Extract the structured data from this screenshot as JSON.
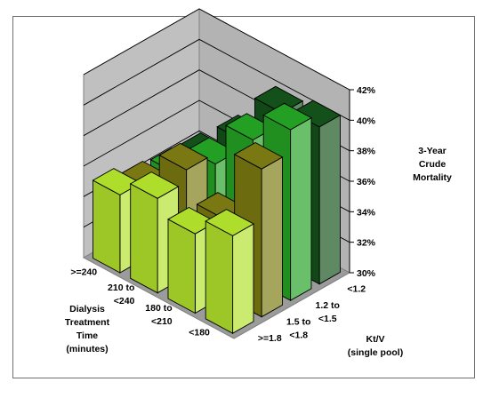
{
  "chart_data": {
    "type": "bar",
    "subtype": "3d-column",
    "zlabel": [
      "3-Year",
      "Crude",
      "Mortality"
    ],
    "xlabel": [
      "Dialysis",
      "Treatment",
      "Time",
      "(minutes)"
    ],
    "ylabel": [
      "Kt/V",
      "(single pool)"
    ],
    "x_categories": [
      [
        "<180"
      ],
      [
        "180 to",
        "<210"
      ],
      [
        "210 to",
        "<240"
      ],
      [
        ">=240"
      ]
    ],
    "y_categories": [
      [
        ">=1.8"
      ],
      [
        "1.5 to",
        "<1.8"
      ],
      [
        "1.2 to",
        "<1.5"
      ],
      [
        "<1.2"
      ]
    ],
    "z_ticks": [
      "30%",
      "32%",
      "34%",
      "36%",
      "38%",
      "40%",
      "42%"
    ],
    "zlim": [
      30,
      42
    ],
    "grid": true,
    "series": [
      {
        "values": [
          36.4,
          35.2,
          36.2,
          35.1
        ],
        "color": "#b2e22c"
      },
      {
        "values": [
          39.7,
          35.1,
          37.0,
          34.5
        ],
        "color": "#7b7a12"
      },
      {
        "values": [
          41.2,
          39.2,
          36.3,
          34.3
        ],
        "color": "#24a224"
      },
      {
        "values": [
          40.3,
          39.9,
          36.7,
          34.2
        ],
        "color": "#14521a"
      }
    ]
  }
}
